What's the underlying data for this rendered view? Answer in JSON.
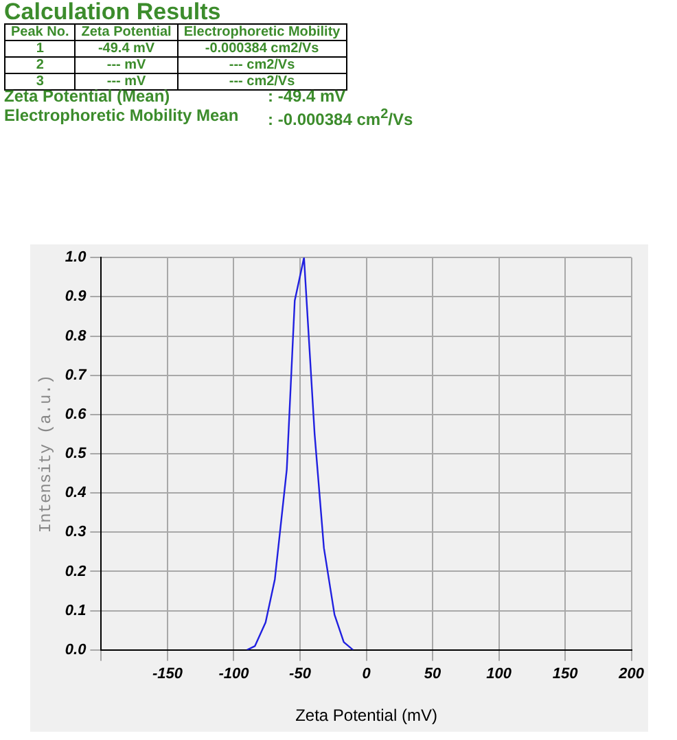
{
  "chart_data": {
    "type": "line",
    "title": "Calculation Results",
    "annotations": [
      "Peak No.",
      "Zeta Potential",
      "Electrophoretic Mobility",
      "1",
      "-49.4 mV",
      "-0.000384 cm2/Vs",
      "2",
      "--- mV",
      "--- cm2/Vs",
      "3",
      "--- mV",
      "--- cm2/Vs",
      "Zeta Potential (Mean)",
      ": -49.4 mV",
      "Electrophoretic Mobility Mean",
      ": -0.000384 cm$^{2}$/Vs"
    ],
    "xlabel": "Zeta Potential (mV)",
    "ylabel": "Intensity (a.u.)",
    "x": [
      -90,
      -84,
      -76,
      -69,
      -60,
      -54,
      -47,
      -39,
      -32,
      -24,
      -17,
      -10
    ],
    "series": [
      {
        "color": "#2020e0",
        "values": [
          0.0,
          0.01,
          0.07,
          0.18,
          0.46,
          0.89,
          1.0,
          0.55,
          0.26,
          0.09,
          0.02,
          0.0
        ]
      }
    ],
    "xlim": [
      -200,
      200
    ],
    "xticks": [
      {
        "value": -200,
        "label": null
      },
      -150,
      -100,
      -50,
      0,
      50,
      100,
      150,
      200
    ],
    "ylim": [
      0,
      1
    ],
    "yticks": [
      {
        "value": 0,
        "label": "0.0"
      },
      0.1,
      0.2,
      0.3,
      0.4,
      0.5,
      0.6,
      0.7,
      0.8,
      0.9,
      {
        "value": 1,
        "label": "1.0"
      }
    ],
    "grid": true,
    "legend": false,
    "marker": "none",
    "line_style": "solid"
  }
}
